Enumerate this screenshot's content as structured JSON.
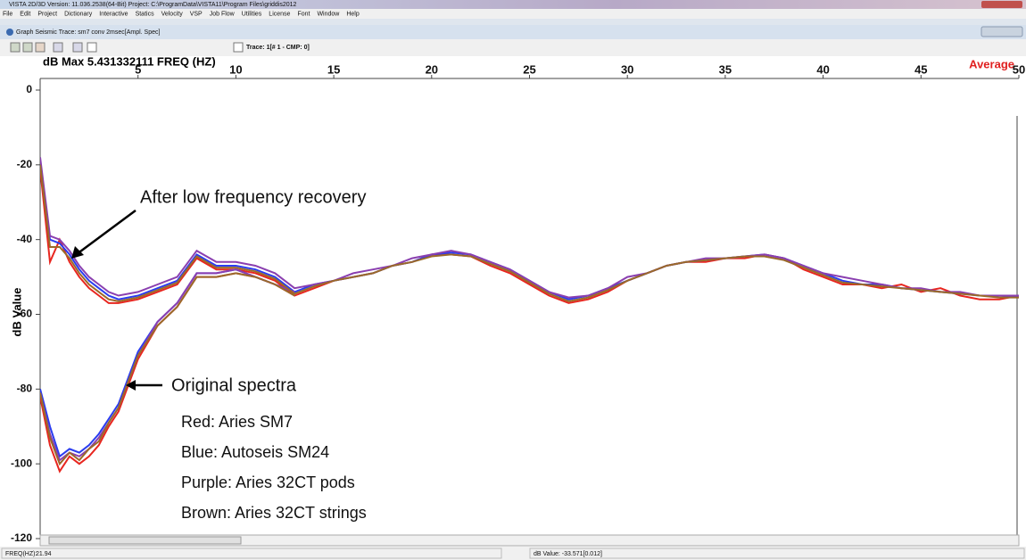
{
  "window": {
    "title": "VISTA 2D/3D Version: 11.036.2538(64-Bit) Project: C:\\ProgramData\\VISTA11\\Program Files\\griddis2012",
    "menu": [
      "File",
      "Edit",
      "Project",
      "Dictionary",
      "Interactive",
      "Statics",
      "Velocity",
      "VSP",
      "Job Flow",
      "Utilities",
      "License",
      "Font",
      "Window",
      "Help"
    ]
  },
  "document": {
    "title": "Graph Seismic Trace: sm7 conv 2msec[Ampl. Spec]",
    "toolbar_text": "Trace: 1[# 1 - CMP: 0]"
  },
  "status": {
    "freq_label": "FREQ(HZ):",
    "freq_value": "21.94",
    "value": "dB Value: -33.571[0.012]"
  },
  "chart_data": {
    "type": "line",
    "header": "dB Max 5.431332111  FREQ (HZ)",
    "average_label": "Average",
    "ylabel": "dB Value",
    "annotations": [
      "After low frequency recovery",
      "Original spectra"
    ],
    "x": [
      0,
      0.5,
      1,
      1.5,
      2,
      2.5,
      3,
      3.5,
      4,
      5,
      6,
      7,
      8,
      9,
      10,
      11,
      12,
      13,
      14,
      15,
      16,
      17,
      18,
      19,
      20,
      21,
      22,
      23,
      24,
      25,
      26,
      27,
      28,
      29,
      30,
      31,
      32,
      33,
      34,
      35,
      36,
      37,
      38,
      39,
      40,
      41,
      42,
      43,
      44,
      45,
      46,
      47,
      48,
      49,
      50
    ],
    "xlim": [
      0,
      50
    ],
    "xticks": [
      5,
      10,
      15,
      20,
      25,
      30,
      35,
      40,
      45,
      50
    ],
    "ylim": [
      -120,
      0
    ],
    "yticks": [
      0,
      -20,
      -40,
      -60,
      -80,
      -100,
      -120
    ],
    "series": [
      {
        "name": "Red: Aries SM7",
        "color": "#e8261f",
        "values": [
          -21,
          -46,
          -40,
          -46,
          -50,
          -53,
          -55,
          -57,
          -57,
          -56,
          -54,
          -52,
          -45,
          -48,
          -48,
          -49,
          -51,
          -55,
          -53,
          -51,
          -50,
          -49,
          -47,
          -46,
          -44,
          -44,
          -44.5,
          -47,
          -49,
          -52,
          -55,
          -57,
          -56,
          -54,
          -51,
          -49,
          -47,
          -46,
          -46,
          -45,
          -45,
          -44,
          -45,
          -48,
          -50,
          -52,
          -52,
          -53,
          -52,
          -54,
          -53,
          -55,
          -56,
          -56,
          -55
        ],
        "original": [
          -82,
          -95,
          -102,
          -98,
          -100,
          -98,
          -95,
          -90,
          -86,
          -72,
          -63,
          -58,
          -50,
          -50,
          -49,
          -50,
          -52,
          -55,
          null,
          null,
          null,
          null,
          null,
          null,
          null,
          null,
          null,
          null,
          null,
          null,
          null,
          null,
          null,
          null,
          null,
          null,
          null,
          null,
          null,
          null,
          null,
          null,
          null,
          null,
          null,
          null,
          null,
          null,
          null,
          null,
          null,
          null,
          null,
          null,
          null
        ]
      },
      {
        "name": "Blue: Autoseis SM24",
        "color": "#2a3cf0",
        "values": [
          -19,
          -40,
          -41,
          -44,
          -48,
          -51,
          -53,
          -55,
          -56,
          -55,
          -53,
          -51,
          -44,
          -47,
          -47,
          -48,
          -50,
          -54,
          -52,
          -51,
          -50,
          -49,
          -47,
          -46,
          -44,
          -43.5,
          -44,
          -46,
          -48,
          -51,
          -54,
          -56,
          -55,
          -53,
          -51,
          -49,
          -47,
          -46,
          -45.5,
          -45,
          -44.5,
          -44,
          -45,
          -47,
          -49,
          -51,
          -52,
          -52,
          -53,
          -53.5,
          -54,
          -54.5,
          -55,
          -55,
          -55.5
        ],
        "original": [
          -80,
          -90,
          -98,
          -96,
          -97,
          -95,
          -92,
          -88,
          -84,
          -70,
          -62,
          -57,
          -49,
          -49,
          -48,
          -50,
          -52,
          -54,
          null,
          null,
          null,
          null,
          null,
          null,
          null,
          null,
          null,
          null,
          null,
          null,
          null,
          null,
          null,
          null,
          null,
          null,
          null,
          null,
          null,
          null,
          null,
          null,
          null,
          null,
          null,
          null,
          null,
          null,
          null,
          null,
          null,
          null,
          null,
          null,
          null
        ]
      },
      {
        "name": "Purple: Aries 32CT pods",
        "color": "#8a3fb0",
        "values": [
          -18,
          -39,
          -40,
          -43,
          -47,
          -50,
          -52,
          -54,
          -55,
          -54,
          -52,
          -50,
          -43,
          -46,
          -46,
          -47,
          -49,
          -53,
          -52,
          -51,
          -49,
          -48,
          -47,
          -45,
          -44,
          -43,
          -44,
          -46,
          -48,
          -51,
          -54,
          -55.5,
          -55,
          -53,
          -50,
          -49,
          -47,
          -46,
          -45,
          -45,
          -44.5,
          -44,
          -45,
          -47,
          -49,
          -50,
          -51,
          -52,
          -53,
          -53,
          -54,
          -54,
          -55,
          -55,
          -55
        ],
        "original": [
          -81,
          -92,
          -99,
          -97,
          -98,
          -96,
          -93,
          -89,
          -85,
          -71,
          -62,
          -57,
          -49,
          -49,
          -48,
          -50,
          -52,
          -54,
          null,
          null,
          null,
          null,
          null,
          null,
          null,
          null,
          null,
          null,
          null,
          null,
          null,
          null,
          null,
          null,
          null,
          null,
          null,
          null,
          null,
          null,
          null,
          null,
          null,
          null,
          null,
          null,
          null,
          null,
          null,
          null,
          null,
          null,
          null,
          null,
          null
        ]
      },
      {
        "name": "Brown: Aries 32CT strings",
        "color": "#9a6a2a",
        "values": [
          -20,
          -42,
          -42,
          -45,
          -49,
          -52,
          -54,
          -56,
          -56.5,
          -55.5,
          -53.5,
          -51.5,
          -44.5,
          -47.5,
          -47.5,
          -48.5,
          -50.5,
          -54.5,
          -52.5,
          -51,
          -50,
          -49,
          -47,
          -46,
          -44.5,
          -44,
          -44.5,
          -46.5,
          -48.5,
          -51.5,
          -54.5,
          -56.5,
          -55.5,
          -53.5,
          -51,
          -49,
          -47,
          -46,
          -45.5,
          -45,
          -44.5,
          -44.5,
          -45.5,
          -47.5,
          -49.5,
          -51.5,
          -52,
          -52.5,
          -53,
          -53.5,
          -54,
          -54.5,
          -55,
          -55.5,
          -55.5
        ],
        "original": [
          -81,
          -93,
          -100,
          -97,
          -99,
          -96,
          -94,
          -89,
          -85,
          -71,
          -63,
          -58,
          -50,
          -50,
          -49,
          -50,
          -52,
          -55,
          null,
          null,
          null,
          null,
          null,
          null,
          null,
          null,
          null,
          null,
          null,
          null,
          null,
          null,
          null,
          null,
          null,
          null,
          null,
          null,
          null,
          null,
          null,
          null,
          null,
          null,
          null,
          null,
          null,
          null,
          null,
          null,
          null,
          null,
          null,
          null,
          null
        ]
      }
    ]
  }
}
